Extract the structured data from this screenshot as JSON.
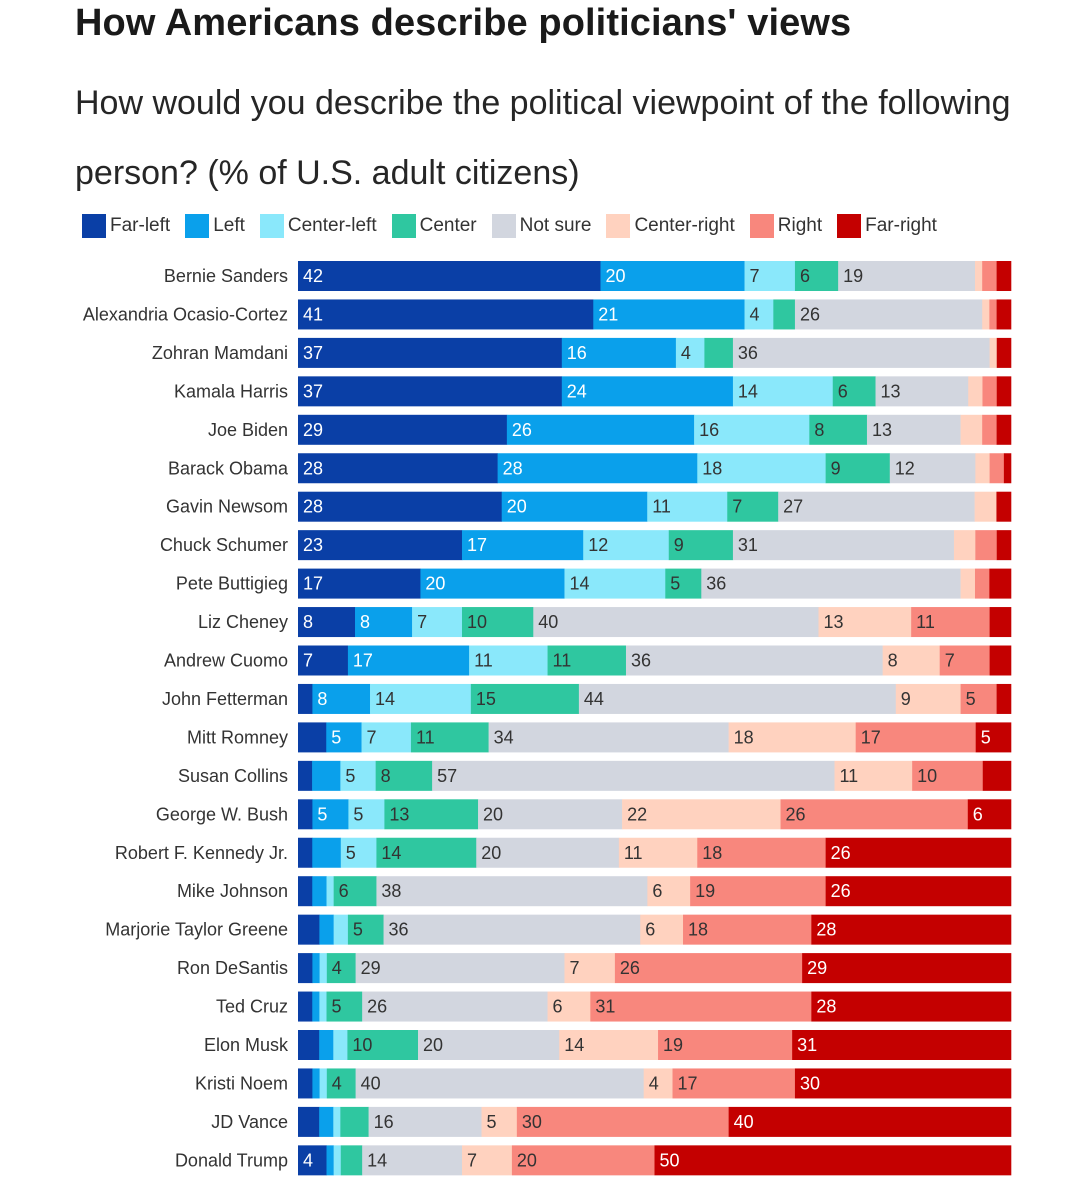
{
  "title": "How Americans describe politicians' views",
  "subtitle": "How would you describe the political viewpoint of the following person? (% of U.S. adult citizens)",
  "chart_data": {
    "type": "bar",
    "orientation": "horizontal",
    "stacked": true,
    "xlim": [
      0,
      100
    ],
    "legend_position": "top",
    "series": [
      {
        "name": "Far-left",
        "color": "#0a3fa6",
        "label_color": "#ffffff",
        "values": [
          42,
          41,
          37,
          37,
          29,
          28,
          28,
          23,
          17,
          8,
          7,
          2,
          4,
          2,
          2,
          2,
          2,
          3,
          2,
          2,
          3,
          2,
          3,
          4
        ]
      },
      {
        "name": "Left",
        "color": "#0aa0eb",
        "label_color": "#ffffff",
        "values": [
          20,
          21,
          16,
          24,
          26,
          28,
          20,
          17,
          20,
          8,
          17,
          8,
          5,
          4,
          5,
          4,
          2,
          2,
          1,
          1,
          2,
          1,
          2,
          1
        ]
      },
      {
        "name": "Center-left",
        "color": "#8ae8fb",
        "label_color": "#333333",
        "values": [
          7,
          4,
          4,
          14,
          16,
          18,
          11,
          12,
          14,
          7,
          11,
          14,
          7,
          5,
          5,
          5,
          1,
          2,
          1,
          1,
          2,
          1,
          1,
          1
        ]
      },
      {
        "name": "Center",
        "color": "#2fc7a0",
        "label_color": "#333333",
        "values": [
          6,
          3,
          4,
          6,
          8,
          9,
          7,
          9,
          5,
          10,
          11,
          15,
          11,
          8,
          13,
          14,
          6,
          5,
          4,
          5,
          10,
          4,
          4,
          3
        ]
      },
      {
        "name": "Not sure",
        "color": "#d2d6df",
        "label_color": "#333333",
        "values": [
          19,
          26,
          36,
          13,
          13,
          12,
          27,
          31,
          36,
          40,
          36,
          44,
          34,
          57,
          20,
          20,
          38,
          36,
          29,
          26,
          20,
          40,
          16,
          14
        ]
      },
      {
        "name": "Center-right",
        "color": "#ffd2bf",
        "label_color": "#333333",
        "values": [
          1,
          1,
          1,
          2,
          3,
          2,
          3,
          3,
          2,
          13,
          8,
          9,
          18,
          11,
          22,
          11,
          6,
          6,
          7,
          6,
          14,
          4,
          5,
          7
        ]
      },
      {
        "name": "Right",
        "color": "#f8877d",
        "label_color": "#333333",
        "values": [
          2,
          1,
          0,
          2,
          2,
          2,
          0,
          3,
          2,
          11,
          7,
          5,
          17,
          10,
          26,
          18,
          19,
          18,
          26,
          31,
          19,
          17,
          30,
          20
        ]
      },
      {
        "name": "Far-right",
        "color": "#c40000",
        "label_color": "#ffffff",
        "values": [
          2,
          2,
          2,
          2,
          2,
          1,
          2,
          2,
          3,
          3,
          3,
          2,
          5,
          4,
          6,
          26,
          26,
          28,
          29,
          28,
          31,
          30,
          40,
          50
        ]
      }
    ],
    "categories": [
      "Bernie Sanders",
      "Alexandria Ocasio-Cortez",
      "Zohran Mamdani",
      "Kamala Harris",
      "Joe Biden",
      "Barack Obama",
      "Gavin Newsom",
      "Chuck Schumer",
      "Pete Buttigieg",
      "Liz Cheney",
      "Andrew Cuomo",
      "John Fetterman",
      "Mitt Romney",
      "Susan Collins",
      "George W. Bush",
      "Robert F. Kennedy Jr.",
      "Mike Johnson",
      "Marjorie Taylor Greene",
      "Ron DeSantis",
      "Ted Cruz",
      "Elon Musk",
      "Kristi Noem",
      "JD Vance",
      "Donald Trump"
    ],
    "data_labels": [
      [
        "42",
        "20",
        "7",
        "6",
        "19",
        "",
        "",
        ""
      ],
      [
        "41",
        "21",
        "4",
        "",
        "26",
        "",
        "",
        ""
      ],
      [
        "37",
        "16",
        "4",
        "",
        "36",
        "",
        "",
        ""
      ],
      [
        "37",
        "24",
        "14",
        "6",
        "13",
        "",
        "",
        ""
      ],
      [
        "29",
        "26",
        "16",
        "8",
        "13",
        "",
        "",
        ""
      ],
      [
        "28",
        "28",
        "18",
        "9",
        "12",
        "",
        "",
        ""
      ],
      [
        "28",
        "20",
        "11",
        "7",
        "27",
        "",
        "",
        ""
      ],
      [
        "23",
        "17",
        "12",
        "9",
        "31",
        "",
        "",
        ""
      ],
      [
        "17",
        "20",
        "14",
        "5",
        "36",
        "",
        "",
        ""
      ],
      [
        "8",
        "8",
        "7",
        "10",
        "40",
        "13",
        "11",
        ""
      ],
      [
        "7",
        "17",
        "11",
        "11",
        "36",
        "8",
        "7",
        ""
      ],
      [
        "",
        "8",
        "14",
        "15",
        "44",
        "9",
        "5",
        ""
      ],
      [
        "",
        "5",
        "7",
        "11",
        "34",
        "18",
        "17",
        "5"
      ],
      [
        "",
        "",
        "5",
        "8",
        "57",
        "11",
        "10",
        ""
      ],
      [
        "",
        "5",
        "5",
        "13",
        "20",
        "22",
        "26",
        "6"
      ],
      [
        "",
        "",
        "5",
        "14",
        "20",
        "11",
        "18",
        "26"
      ],
      [
        "",
        "",
        "",
        "6",
        "38",
        "6",
        "19",
        "26"
      ],
      [
        "",
        "",
        "",
        "5",
        "36",
        "6",
        "18",
        "28"
      ],
      [
        "",
        "",
        "",
        "4",
        "29",
        "7",
        "26",
        "29"
      ],
      [
        "",
        "",
        "",
        "5",
        "26",
        "6",
        "31",
        "28"
      ],
      [
        "",
        "",
        "",
        "10",
        "20",
        "14",
        "19",
        "31"
      ],
      [
        "",
        "",
        "",
        "4",
        "40",
        "4",
        "17",
        "30"
      ],
      [
        "",
        "",
        "",
        "",
        "16",
        "5",
        "30",
        "40"
      ],
      [
        "4",
        "",
        "",
        "",
        "14",
        "7",
        "20",
        "50"
      ]
    ]
  }
}
